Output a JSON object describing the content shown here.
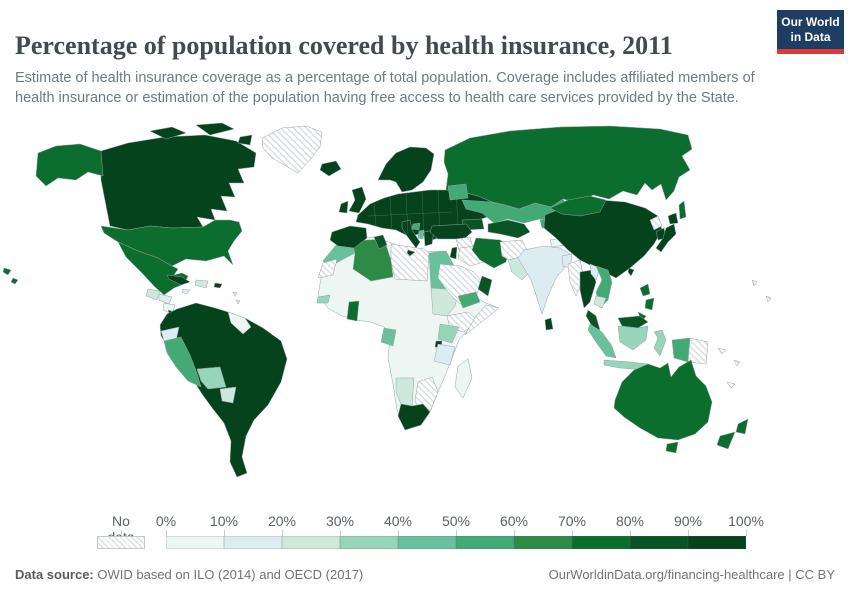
{
  "header": {
    "title": "Percentage of population covered by health insurance, 2011",
    "subtitle": "Estimate of health insurance coverage as a percentage of total population. Coverage includes affiliated members of health insurance or estimation of the population having free access to health care services provided by the State.",
    "logo": {
      "line1": "Our World",
      "line2": "in Data",
      "bg": "#1d3d63",
      "accent": "#d93c34"
    }
  },
  "footer": {
    "source_label": "Data source:",
    "source_text": " OWID based on ILO (2014) and OECD (2017)",
    "right_text": "OurWorldinData.org/financing-healthcare | CC BY"
  },
  "chart_data": {
    "type": "choropleth_map",
    "title": "Percentage of population covered by health insurance, 2011",
    "unit": "%",
    "layout": {
      "ocean": "#ffffff",
      "country_border": "#96a1a6",
      "legend_position": "bottom"
    },
    "bins": {
      "no_data_label": "No data",
      "no_data_pattern": {
        "bg": "#ffffff",
        "line": "#d4d9dc"
      },
      "labels": [
        "0%",
        "10%",
        "20%",
        "30%",
        "40%",
        "50%",
        "60%",
        "70%",
        "80%",
        "90%",
        "100%"
      ],
      "ranges": [
        "0-10%",
        "10-20%",
        "20-30%",
        "30-40%",
        "40-50%",
        "50-60%",
        "60-70%",
        "70-80%",
        "80-90%",
        "90-100%"
      ],
      "colors": [
        "#edf6f3",
        "#dcecf1",
        "#cfe8dc",
        "#97d5bb",
        "#68c19c",
        "#43aa76",
        "#2d8b46",
        "#0c6e2e",
        "#085424",
        "#04431b"
      ]
    },
    "regions": [
      {
        "id": "greenland",
        "label": "Greenland",
        "bucket": -1
      },
      {
        "id": "canada",
        "label": "Canada",
        "bucket": 9
      },
      {
        "id": "alaska",
        "label": "Alaska (United States)",
        "bucket": 7
      },
      {
        "id": "usa",
        "label": "United States",
        "bucket": 7
      },
      {
        "id": "hawaii",
        "label": "Hawaii (United States)",
        "bucket": 7
      },
      {
        "id": "mexico",
        "label": "Mexico",
        "bucket": 7
      },
      {
        "id": "guatemala",
        "label": "Guatemala",
        "bucket": 2
      },
      {
        "id": "honduras",
        "label": "Honduras",
        "bucket": 1
      },
      {
        "id": "nicaragua",
        "label": "Nicaragua",
        "bucket": 0
      },
      {
        "id": "costa_rica_panama",
        "label": "Costa Rica & Panama",
        "bucket": 9
      },
      {
        "id": "cuba",
        "label": "Cuba",
        "bucket": 9
      },
      {
        "id": "jamaica",
        "label": "Jamaica",
        "bucket": 1
      },
      {
        "id": "dominican_republic",
        "label": "Dominican Republic",
        "bucket": 2
      },
      {
        "id": "puerto_rico",
        "label": "Puerto Rico",
        "bucket": 9
      },
      {
        "id": "lesser_antilles",
        "label": "Lesser Antilles",
        "bucket": 1
      },
      {
        "id": "iceland",
        "label": "Iceland",
        "bucket": 9
      },
      {
        "id": "south_america_main",
        "label": "Brazil, Argentina, Chile, Colombia, Venezuela, Uruguay",
        "bucket": 9
      },
      {
        "id": "guyanas",
        "label": "Guyana & Suriname",
        "bucket": 0
      },
      {
        "id": "ecuador",
        "label": "Ecuador",
        "bucket": 1
      },
      {
        "id": "peru",
        "label": "Peru",
        "bucket": 5
      },
      {
        "id": "bolivia",
        "label": "Bolivia",
        "bucket": 3
      },
      {
        "id": "paraguay",
        "label": "Paraguay",
        "bucket": 2
      },
      {
        "id": "africa_other",
        "label": "West & Central Africa (most countries)",
        "bucket": 0
      },
      {
        "id": "morocco",
        "label": "Morocco",
        "bucket": 4
      },
      {
        "id": "western_sahara",
        "label": "Western Sahara",
        "bucket": -1
      },
      {
        "id": "algeria",
        "label": "Algeria",
        "bucket": 6
      },
      {
        "id": "tunisia",
        "label": "Tunisia",
        "bucket": 8
      },
      {
        "id": "libya",
        "label": "Libya",
        "bucket": -1
      },
      {
        "id": "egypt",
        "label": "Egypt",
        "bucket": 4
      },
      {
        "id": "sudan",
        "label": "Sudan",
        "bucket": 2
      },
      {
        "id": "ethiopia",
        "label": "Ethiopia",
        "bucket": -1
      },
      {
        "id": "somalia",
        "label": "Somalia",
        "bucket": -1
      },
      {
        "id": "senegal_gambia",
        "label": "Senegal & Gambia",
        "bucket": 3
      },
      {
        "id": "ghana",
        "label": "Ghana",
        "bucket": 7
      },
      {
        "id": "gabon_congo",
        "label": "Gabon",
        "bucket": 4
      },
      {
        "id": "kenya",
        "label": "Kenya",
        "bucket": 3
      },
      {
        "id": "rwanda",
        "label": "Rwanda",
        "bucket": 9
      },
      {
        "id": "tanzania",
        "label": "Tanzania",
        "bucket": 1
      },
      {
        "id": "namibia",
        "label": "Namibia",
        "bucket": 2
      },
      {
        "id": "zimbabwe_mozambique",
        "label": "Zimbabwe & Mozambique",
        "bucket": -1
      },
      {
        "id": "south_africa",
        "label": "South Africa",
        "bucket": 9
      },
      {
        "id": "madagascar",
        "label": "Madagascar",
        "bucket": 0
      },
      {
        "id": "scandinavia",
        "label": "Norway, Sweden, Finland",
        "bucket": 9
      },
      {
        "id": "denmark",
        "label": "Denmark",
        "bucket": 9
      },
      {
        "id": "uk",
        "label": "United Kingdom",
        "bucket": 9
      },
      {
        "id": "ireland",
        "label": "Ireland",
        "bucket": 9
      },
      {
        "id": "europe_main",
        "label": "Western & Eastern Europe incl. Ukraine",
        "bucket": 9
      },
      {
        "id": "iberia",
        "label": "Spain & Portugal",
        "bucket": 9
      },
      {
        "id": "italy",
        "label": "Italy",
        "bucket": 9
      },
      {
        "id": "greece",
        "label": "Greece",
        "bucket": 9
      },
      {
        "id": "albania",
        "label": "Albania",
        "bucket": 4
      },
      {
        "id": "bosnia",
        "label": "Bosnia and Herzegovina",
        "bucket": 5
      },
      {
        "id": "baltics",
        "label": "Baltic states",
        "bucket": 5
      },
      {
        "id": "russia",
        "label": "Russia",
        "bucket": 7
      },
      {
        "id": "sakhalin",
        "label": "Sakhalin (Russia)",
        "bucket": 7
      },
      {
        "id": "kazakhstan",
        "label": "Kazakhstan",
        "bucket": 5
      },
      {
        "id": "uzbekistan_turkmenistan",
        "label": "Uzbekistan & Turkmenistan",
        "bucket": 8
      },
      {
        "id": "kyrgyzstan_tajikistan",
        "label": "Kyrgyzstan & Tajikistan",
        "bucket": 5
      },
      {
        "id": "caucasus",
        "label": "Caucasus",
        "bucket": 8
      },
      {
        "id": "turkey",
        "label": "Turkey",
        "bucket": 9
      },
      {
        "id": "syria",
        "label": "Syria",
        "bucket": -1
      },
      {
        "id": "israel",
        "label": "Israel",
        "bucket": 9
      },
      {
        "id": "iraq",
        "label": "Iraq",
        "bucket": -1
      },
      {
        "id": "iran",
        "label": "Iran",
        "bucket": 7
      },
      {
        "id": "saudi_arabia",
        "label": "Saudi Arabia",
        "bucket": -1
      },
      {
        "id": "yemen",
        "label": "Yemen",
        "bucket": 5
      },
      {
        "id": "oman",
        "label": "Oman",
        "bucket": 8
      },
      {
        "id": "afghanistan",
        "label": "Afghanistan",
        "bucket": -1
      },
      {
        "id": "pakistan",
        "label": "Pakistan",
        "bucket": 2
      },
      {
        "id": "india",
        "label": "India",
        "bucket": 1
      },
      {
        "id": "nepal",
        "label": "Nepal",
        "bucket": 0
      },
      {
        "id": "bangladesh",
        "label": "Bangladesh",
        "bucket": 1
      },
      {
        "id": "sri_lanka",
        "label": "Sri Lanka",
        "bucket": 9
      },
      {
        "id": "myanmar",
        "label": "Myanmar",
        "bucket": -1
      },
      {
        "id": "china",
        "label": "China",
        "bucket": 9
      },
      {
        "id": "mongolia",
        "label": "Mongolia",
        "bucket": 7
      },
      {
        "id": "north_korea",
        "label": "North Korea",
        "bucket": -1
      },
      {
        "id": "south_korea",
        "label": "South Korea",
        "bucket": 9
      },
      {
        "id": "japan",
        "label": "Japan",
        "bucket": 9
      },
      {
        "id": "taiwan",
        "label": "Taiwan",
        "bucket": 9
      },
      {
        "id": "thailand",
        "label": "Thailand",
        "bucket": 9
      },
      {
        "id": "laos",
        "label": "Laos",
        "bucket": 1
      },
      {
        "id": "vietnam",
        "label": "Vietnam",
        "bucket": 5
      },
      {
        "id": "cambodia",
        "label": "Cambodia",
        "bucket": 2
      },
      {
        "id": "malay_peninsula",
        "label": "Malaysia (peninsula)",
        "bucket": 8
      },
      {
        "id": "philippines",
        "label": "Philippines",
        "bucket": 7
      },
      {
        "id": "borneo_malaysia",
        "label": "Malaysia (Borneo)",
        "bucket": 8
      },
      {
        "id": "borneo_indonesia",
        "label": "Indonesia (Kalimantan)",
        "bucket": 3
      },
      {
        "id": "sumatra",
        "label": "Indonesia (Sumatra)",
        "bucket": 4
      },
      {
        "id": "java",
        "label": "Indonesia (Java)",
        "bucket": 3
      },
      {
        "id": "sulawesi",
        "label": "Indonesia (Sulawesi)",
        "bucket": 3
      },
      {
        "id": "timor",
        "label": "Timor",
        "bucket": 1
      },
      {
        "id": "west_papua",
        "label": "Indonesia (Papua)",
        "bucket": 5
      },
      {
        "id": "papua_new_guinea",
        "label": "Papua New Guinea",
        "bucket": -1
      },
      {
        "id": "fiji_new_caledonia",
        "label": "Fiji & New Caledonia",
        "bucket": -1
      },
      {
        "id": "australia",
        "label": "Australia",
        "bucket": 7
      },
      {
        "id": "tasmania",
        "label": "Tasmania (Australia)",
        "bucket": 7
      },
      {
        "id": "new_zealand",
        "label": "New Zealand",
        "bucket": 7
      },
      {
        "id": "pacific_islands",
        "label": "Pacific islands",
        "bucket": -1
      }
    ]
  }
}
